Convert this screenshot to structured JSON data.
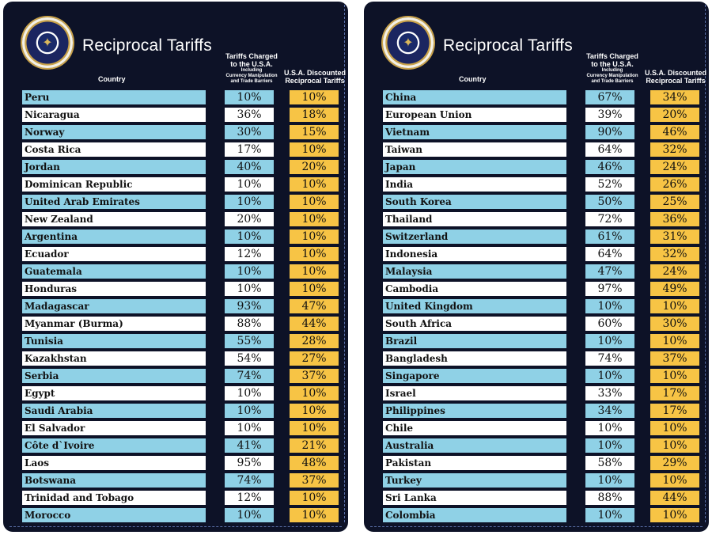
{
  "title": "Reciprocal Tariffs",
  "header": {
    "country": "Country",
    "charged_line1": "Tariffs Charged",
    "charged_line2": "to the U.S.A.",
    "charged_sub1": "Including",
    "charged_sub2": "Currency Manipulation",
    "charged_sub3": "and Trade Barriers",
    "disc_line1": "U.S.A. Discounted",
    "disc_line2": "Reciprocal Tariffs"
  },
  "colors": {
    "background": "#0d1227",
    "row_blue": "#8fd1e6",
    "row_white": "#ffffff",
    "discount": "#f7c445"
  },
  "left": [
    {
      "country": "Peru",
      "charged": "10%",
      "discounted": "10%"
    },
    {
      "country": "Nicaragua",
      "charged": "36%",
      "discounted": "18%"
    },
    {
      "country": "Norway",
      "charged": "30%",
      "discounted": "15%"
    },
    {
      "country": "Costa Rica",
      "charged": "17%",
      "discounted": "10%"
    },
    {
      "country": "Jordan",
      "charged": "40%",
      "discounted": "20%"
    },
    {
      "country": "Dominican Republic",
      "charged": "10%",
      "discounted": "10%"
    },
    {
      "country": "United Arab Emirates",
      "charged": "10%",
      "discounted": "10%"
    },
    {
      "country": "New Zealand",
      "charged": "20%",
      "discounted": "10%"
    },
    {
      "country": "Argentina",
      "charged": "10%",
      "discounted": "10%"
    },
    {
      "country": "Ecuador",
      "charged": "12%",
      "discounted": "10%"
    },
    {
      "country": "Guatemala",
      "charged": "10%",
      "discounted": "10%"
    },
    {
      "country": "Honduras",
      "charged": "10%",
      "discounted": "10%"
    },
    {
      "country": "Madagascar",
      "charged": "93%",
      "discounted": "47%"
    },
    {
      "country": "Myanmar (Burma)",
      "charged": "88%",
      "discounted": "44%"
    },
    {
      "country": "Tunisia",
      "charged": "55%",
      "discounted": "28%"
    },
    {
      "country": "Kazakhstan",
      "charged": "54%",
      "discounted": "27%"
    },
    {
      "country": "Serbia",
      "charged": "74%",
      "discounted": "37%"
    },
    {
      "country": "Egypt",
      "charged": "10%",
      "discounted": "10%"
    },
    {
      "country": "Saudi Arabia",
      "charged": "10%",
      "discounted": "10%"
    },
    {
      "country": "El Salvador",
      "charged": "10%",
      "discounted": "10%"
    },
    {
      "country": "Côte d`Ivoire",
      "charged": "41%",
      "discounted": "21%"
    },
    {
      "country": "Laos",
      "charged": "95%",
      "discounted": "48%"
    },
    {
      "country": "Botswana",
      "charged": "74%",
      "discounted": "37%"
    },
    {
      "country": "Trinidad and Tobago",
      "charged": "12%",
      "discounted": "10%"
    },
    {
      "country": "Morocco",
      "charged": "10%",
      "discounted": "10%"
    }
  ],
  "right": [
    {
      "country": "China",
      "charged": "67%",
      "discounted": "34%"
    },
    {
      "country": "European Union",
      "charged": "39%",
      "discounted": "20%"
    },
    {
      "country": "Vietnam",
      "charged": "90%",
      "discounted": "46%"
    },
    {
      "country": "Taiwan",
      "charged": "64%",
      "discounted": "32%"
    },
    {
      "country": "Japan",
      "charged": "46%",
      "discounted": "24%"
    },
    {
      "country": "India",
      "charged": "52%",
      "discounted": "26%"
    },
    {
      "country": "South Korea",
      "charged": "50%",
      "discounted": "25%"
    },
    {
      "country": "Thailand",
      "charged": "72%",
      "discounted": "36%"
    },
    {
      "country": "Switzerland",
      "charged": "61%",
      "discounted": "31%"
    },
    {
      "country": "Indonesia",
      "charged": "64%",
      "discounted": "32%"
    },
    {
      "country": "Malaysia",
      "charged": "47%",
      "discounted": "24%"
    },
    {
      "country": "Cambodia",
      "charged": "97%",
      "discounted": "49%"
    },
    {
      "country": "United Kingdom",
      "charged": "10%",
      "discounted": "10%"
    },
    {
      "country": "South Africa",
      "charged": "60%",
      "discounted": "30%"
    },
    {
      "country": "Brazil",
      "charged": "10%",
      "discounted": "10%"
    },
    {
      "country": "Bangladesh",
      "charged": "74%",
      "discounted": "37%"
    },
    {
      "country": "Singapore",
      "charged": "10%",
      "discounted": "10%"
    },
    {
      "country": "Israel",
      "charged": "33%",
      "discounted": "17%"
    },
    {
      "country": "Philippines",
      "charged": "34%",
      "discounted": "17%"
    },
    {
      "country": "Chile",
      "charged": "10%",
      "discounted": "10%"
    },
    {
      "country": "Australia",
      "charged": "10%",
      "discounted": "10%"
    },
    {
      "country": "Pakistan",
      "charged": "58%",
      "discounted": "29%"
    },
    {
      "country": "Turkey",
      "charged": "10%",
      "discounted": "10%"
    },
    {
      "country": "Sri Lanka",
      "charged": "88%",
      "discounted": "44%"
    },
    {
      "country": "Colombia",
      "charged": "10%",
      "discounted": "10%"
    }
  ]
}
